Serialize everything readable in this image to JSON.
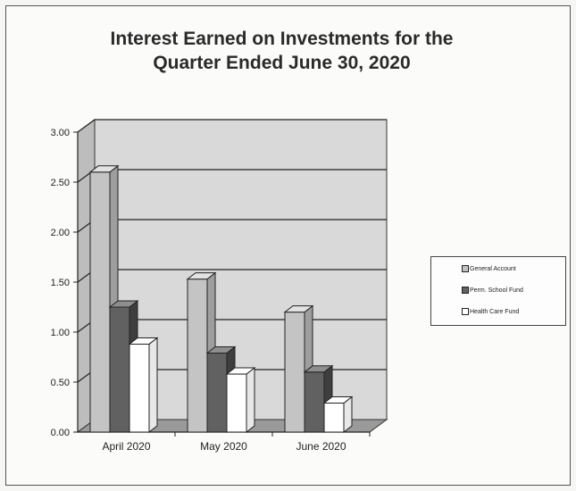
{
  "chart_data": {
    "type": "bar",
    "title_line1": "Interest Earned on Investments for the",
    "title_line2": "Quarter Ended June 30, 2020",
    "categories": [
      "April 2020",
      "May 2020",
      "June 2020"
    ],
    "series": [
      {
        "name": "General Account",
        "values": [
          2.6,
          1.53,
          1.2
        ],
        "color": "#c4c4c4"
      },
      {
        "name": "Perm. School Fund",
        "values": [
          1.25,
          0.79,
          0.6
        ],
        "color": "#616161"
      },
      {
        "name": "Health Care Fund",
        "values": [
          0.88,
          0.58,
          0.29
        ],
        "color": "#ffffff"
      }
    ],
    "ylim": [
      0,
      3.0
    ],
    "yticks": [
      "0.00",
      "0.50",
      "1.00",
      "1.50",
      "2.00",
      "2.50",
      "3.00"
    ],
    "grid": true,
    "legend_position": "right"
  }
}
